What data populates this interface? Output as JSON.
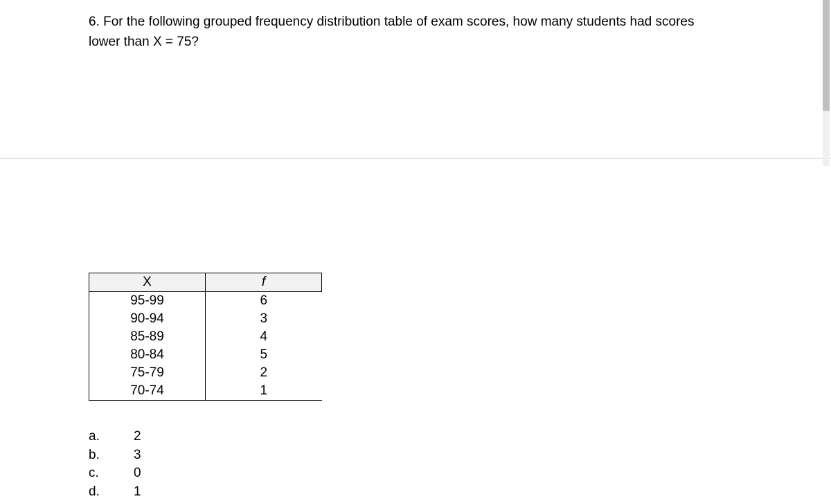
{
  "question": {
    "text": "6. For the following grouped frequency distribution table of exam scores, how many students had scores lower than X = 75?"
  },
  "table": {
    "columns": [
      "X",
      "f"
    ],
    "rows": [
      [
        "95-99",
        "6"
      ],
      [
        "90-94",
        "3"
      ],
      [
        "85-89",
        "4"
      ],
      [
        "80-84",
        "5"
      ],
      [
        "75-79",
        "2"
      ],
      [
        "70-74",
        "1"
      ]
    ]
  },
  "options": [
    {
      "letter": "a.",
      "value": "2"
    },
    {
      "letter": "b.",
      "value": "3"
    },
    {
      "letter": "c.",
      "value": "0"
    },
    {
      "letter": "d.",
      "value": "1"
    }
  ],
  "scrollbar": {
    "thumb_height": 160
  }
}
